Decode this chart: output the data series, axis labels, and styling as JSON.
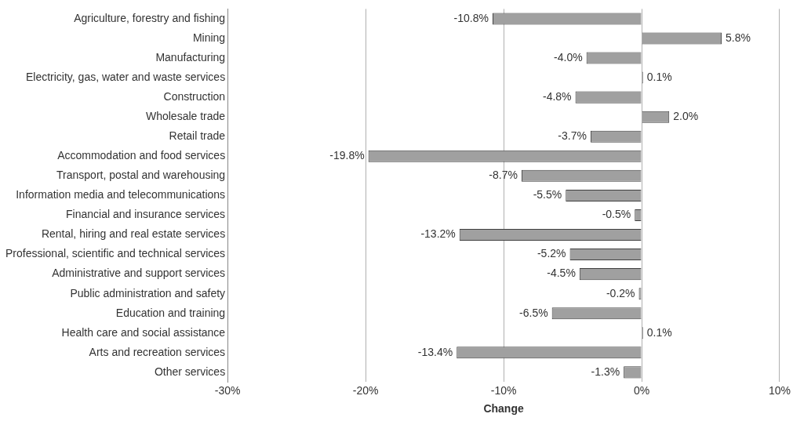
{
  "chart_data": {
    "type": "bar",
    "orientation": "horizontal",
    "xlabel": "Change",
    "categories": [
      "Agriculture, forestry and fishing",
      "Mining",
      "Manufacturing",
      "Electricity, gas, water and waste services",
      "Construction",
      "Wholesale trade",
      "Retail trade",
      "Accommodation and food services",
      "Transport, postal and warehousing",
      "Information media and telecommunications",
      "Financial and insurance services",
      "Rental, hiring and real estate services",
      "Professional, scientific and technical services",
      "Administrative and support services",
      "Public administration and safety",
      "Education and training",
      "Health care and social assistance",
      "Arts and recreation services",
      "Other services"
    ],
    "values": [
      -10.8,
      5.8,
      -4.0,
      0.1,
      -4.8,
      2.0,
      -3.7,
      -19.8,
      -8.7,
      -5.5,
      -0.5,
      -13.2,
      -5.2,
      -4.5,
      -0.2,
      -6.5,
      0.1,
      -13.4,
      -1.3
    ],
    "value_labels": [
      "-10.8%",
      "5.8%",
      "-4.0%",
      "0.1%",
      "-4.8%",
      "2.0%",
      "-3.7%",
      "-19.8%",
      "-8.7%",
      "-5.5%",
      "-0.5%",
      "-13.2%",
      "-5.2%",
      "-4.5%",
      "-0.2%",
      "-6.5%",
      "0.1%",
      "-13.4%",
      "-1.3%"
    ],
    "color": "#a0a0a0",
    "xlim": [
      -30,
      10
    ],
    "xticks": [
      {
        "value": -30,
        "label": "-30%"
      },
      {
        "value": -20,
        "label": "-20%"
      },
      {
        "value": -10,
        "label": "-10%"
      },
      {
        "value": 0,
        "label": "0%"
      },
      {
        "value": 10,
        "label": "10%"
      }
    ],
    "grid": "x",
    "legend": false
  }
}
